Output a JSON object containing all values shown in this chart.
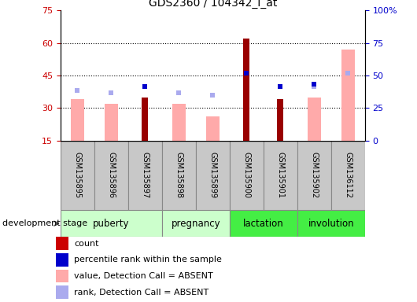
{
  "title": "GDS2360 / 104342_i_at",
  "samples": [
    "GSM135895",
    "GSM135896",
    "GSM135897",
    "GSM135898",
    "GSM135899",
    "GSM135900",
    "GSM135901",
    "GSM135902",
    "GSM136112"
  ],
  "count_values": [
    null,
    null,
    35,
    null,
    null,
    62,
    34,
    null,
    null
  ],
  "value_absent": [
    34,
    32,
    null,
    32,
    26,
    null,
    null,
    35,
    57
  ],
  "rank_absent": [
    38,
    37,
    null,
    37,
    36,
    46,
    null,
    40,
    46
  ],
  "percentile_rank": [
    null,
    null,
    40,
    null,
    null,
    46,
    40,
    41,
    null
  ],
  "stage_groups": [
    {
      "label": "puberty",
      "start": 0,
      "end": 3,
      "color": "#ccffcc"
    },
    {
      "label": "pregnancy",
      "start": 3,
      "end": 5,
      "color": "#ccffcc"
    },
    {
      "label": "lactation",
      "start": 5,
      "end": 7,
      "color": "#44ee44"
    },
    {
      "label": "involution",
      "start": 7,
      "end": 9,
      "color": "#44ee44"
    }
  ],
  "ylim_left": [
    15,
    75
  ],
  "ylim_right": [
    0,
    100
  ],
  "yticks_left": [
    15,
    30,
    45,
    60,
    75
  ],
  "yticks_right": [
    0,
    25,
    50,
    75,
    100
  ],
  "left_tick_color": "#cc0000",
  "right_tick_color": "#0000cc",
  "count_color": "#990000",
  "value_absent_color": "#ffaaaa",
  "rank_absent_color": "#aaaaee",
  "percentile_rank_color": "#0000cc",
  "grid_dotted_at": [
    30,
    45,
    60
  ],
  "bg_color": "#ffffff",
  "dev_stage_label": "development stage",
  "legend_items": [
    {
      "label": "count",
      "color": "#cc0000"
    },
    {
      "label": "percentile rank within the sample",
      "color": "#0000cc"
    },
    {
      "label": "value, Detection Call = ABSENT",
      "color": "#ffaaaa"
    },
    {
      "label": "rank, Detection Call = ABSENT",
      "color": "#aaaaee"
    }
  ],
  "label_box_color": "#c8c8c8",
  "label_box_edge": "#888888"
}
